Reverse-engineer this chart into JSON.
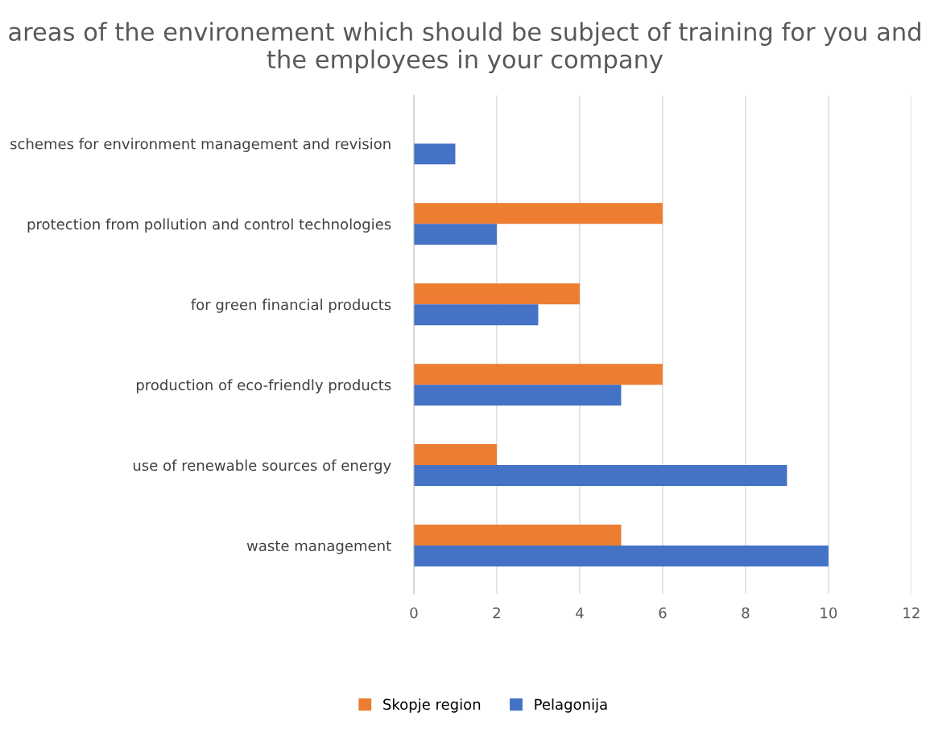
{
  "chart_data": {
    "type": "bar",
    "orientation": "horizontal",
    "title": "areas of the environement which should be subject of training for you and the employees in your company",
    "categories": [
      "schemes for environment management and revision",
      "protection from pollution and control technologies",
      "for green financial products",
      "production of eco-friendly products",
      "use of renewable sources of energy",
      "waste management"
    ],
    "series": [
      {
        "name": "Skopje region",
        "color": "#ed7d31",
        "values": [
          null,
          6,
          4,
          6,
          2,
          5
        ]
      },
      {
        "name": "Pelagonija",
        "color": "#4472c4",
        "values": [
          1,
          2,
          3,
          5,
          9,
          10
        ]
      }
    ],
    "xlim": [
      0,
      12
    ],
    "xticks": [
      0,
      2,
      4,
      6,
      8,
      10,
      12
    ],
    "grid": "x",
    "legend": "bottom"
  }
}
